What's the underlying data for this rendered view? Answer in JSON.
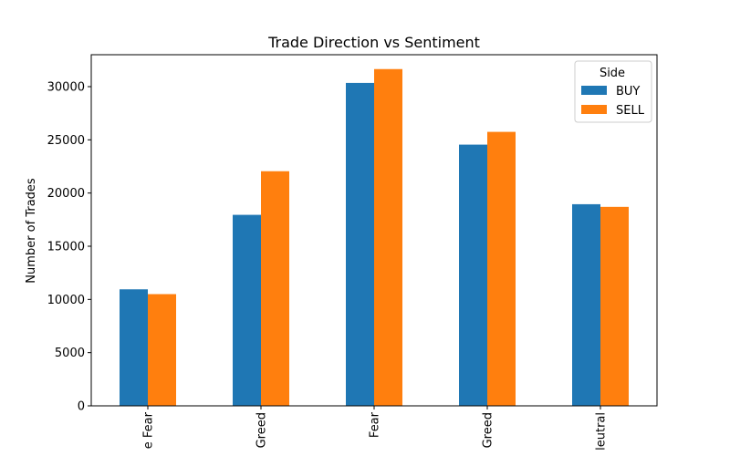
{
  "chart_data": {
    "type": "bar",
    "title": "Trade Direction vs Sentiment",
    "xlabel": "",
    "ylabel": "Number of Trades",
    "categories": [
      "e Fear",
      "Greed",
      "Fear",
      "Greed",
      "leutral"
    ],
    "series": [
      {
        "name": "BUY",
        "color": "#1f77b4",
        "values": [
          10950,
          17950,
          30350,
          24550,
          18950
        ]
      },
      {
        "name": "SELL",
        "color": "#ff7f0e",
        "values": [
          10500,
          22050,
          31650,
          25750,
          18700
        ]
      }
    ],
    "ylim": [
      0,
      33000
    ],
    "yticks": [
      0,
      5000,
      10000,
      15000,
      20000,
      25000,
      30000
    ],
    "grid": false,
    "legend": {
      "title": "Side",
      "placement": "top-right"
    }
  }
}
